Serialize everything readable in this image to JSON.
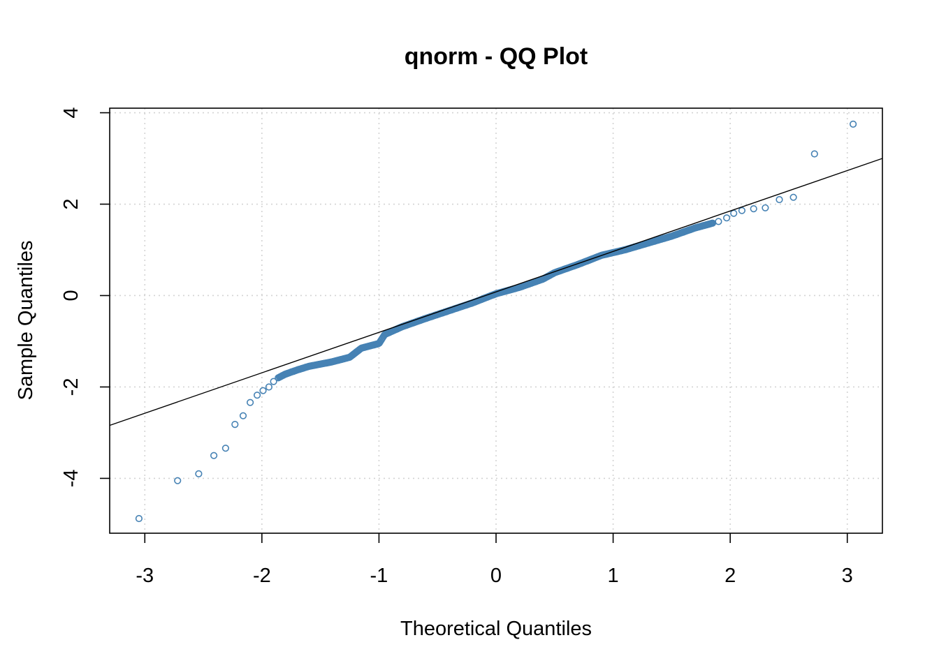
{
  "chart_data": {
    "type": "scatter",
    "title": "qnorm - QQ Plot",
    "xlabel": "Theoretical Quantiles",
    "ylabel": "Sample Quantiles",
    "xlim": [
      -3.3,
      3.3
    ],
    "ylim": [
      -5.2,
      4.1
    ],
    "xticks": [
      -3,
      -2,
      -1,
      0,
      1,
      2,
      3
    ],
    "yticks": [
      -4,
      -2,
      0,
      2,
      4
    ],
    "grid": true,
    "point_color": "#4682b4",
    "line_color": "#000000",
    "reference_line": {
      "intercept": 0.08,
      "slope": 0.885
    },
    "anchors": [
      [
        -3.05,
        -4.88
      ],
      [
        -2.72,
        -4.05
      ],
      [
        -2.54,
        -3.9
      ],
      [
        -2.41,
        -3.5
      ],
      [
        -2.31,
        -3.34
      ],
      [
        -2.23,
        -2.82
      ],
      [
        -2.16,
        -2.63
      ],
      [
        -2.1,
        -2.34
      ],
      [
        -2.04,
        -2.18
      ],
      [
        -1.99,
        -2.08
      ],
      [
        -1.94,
        -2.0
      ],
      [
        -1.9,
        -1.88
      ],
      [
        -1.86,
        -1.8
      ],
      [
        -1.8,
        -1.72
      ],
      [
        -1.7,
        -1.63
      ],
      [
        -1.6,
        -1.55
      ],
      [
        -1.4,
        -1.45
      ],
      [
        -1.25,
        -1.35
      ],
      [
        -1.15,
        -1.15
      ],
      [
        -1.0,
        -1.05
      ],
      [
        -0.95,
        -0.85
      ],
      [
        -0.8,
        -0.68
      ],
      [
        -0.6,
        -0.5
      ],
      [
        -0.4,
        -0.33
      ],
      [
        -0.2,
        -0.16
      ],
      [
        0.0,
        0.04
      ],
      [
        0.2,
        0.18
      ],
      [
        0.4,
        0.36
      ],
      [
        0.5,
        0.5
      ],
      [
        0.7,
        0.68
      ],
      [
        0.9,
        0.88
      ],
      [
        1.1,
        1.0
      ],
      [
        1.3,
        1.15
      ],
      [
        1.5,
        1.3
      ],
      [
        1.7,
        1.48
      ],
      [
        1.8,
        1.55
      ],
      [
        1.9,
        1.62
      ],
      [
        1.97,
        1.7
      ],
      [
        2.03,
        1.8
      ],
      [
        2.1,
        1.86
      ],
      [
        2.2,
        1.9
      ],
      [
        2.3,
        1.92
      ],
      [
        2.42,
        2.1
      ],
      [
        2.54,
        2.15
      ],
      [
        2.72,
        3.1
      ],
      [
        3.05,
        3.75
      ]
    ],
    "n_points": 500
  }
}
